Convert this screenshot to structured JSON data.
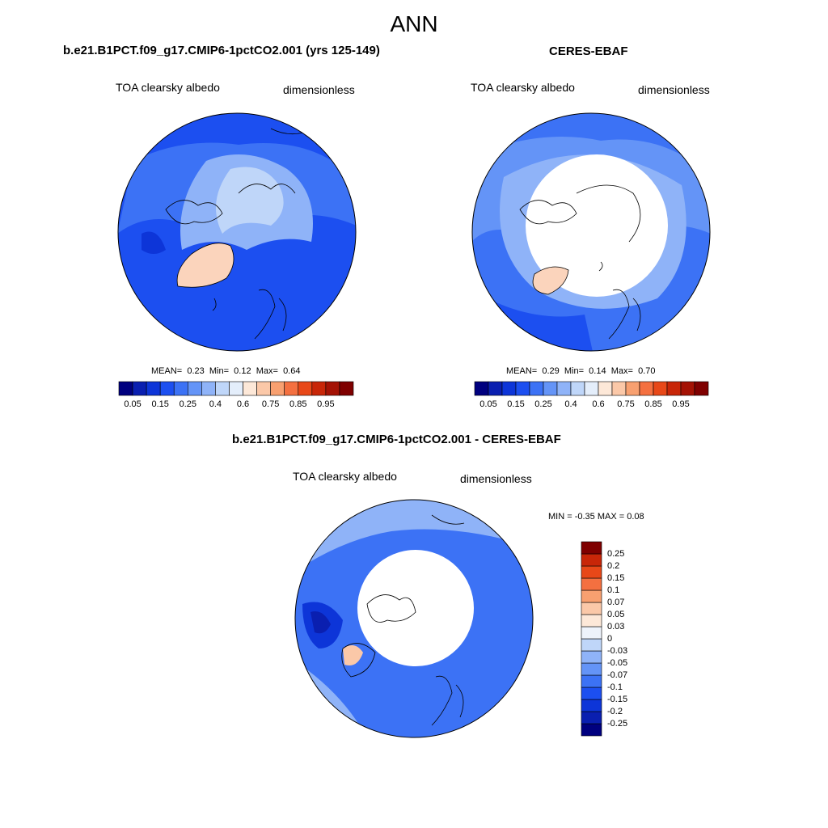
{
  "season": "ANN",
  "panels": [
    {
      "title": "b.e21.B1PCT.f09_g17.CMIP6-1pctCO2.001 (yrs 125-149)",
      "variable": "TOA clearsky albedo",
      "units": "dimensionless",
      "mean_label": "MEAN=",
      "mean": "0.23",
      "min_label": "Min=",
      "min": "0.12",
      "max_label": "Max=",
      "max": "0.64"
    },
    {
      "title": "CERES-EBAF",
      "variable": "TOA clearsky albedo",
      "units": "dimensionless",
      "mean_label": "MEAN=",
      "mean": "0.29",
      "min_label": "Min=",
      "min": "0.14",
      "max_label": "Max=",
      "max": "0.70"
    }
  ],
  "diff_panel": {
    "title": "b.e21.B1PCT.f09_g17.CMIP6-1pctCO2.001 - CERES-EBAF",
    "variable": "TOA clearsky albedo",
    "units": "dimensionless",
    "range_text": "MIN =  -0.35 MAX =   0.08"
  },
  "colorbar_abs": {
    "colors": [
      "#00007f",
      "#0a1fb0",
      "#0d35d8",
      "#1c4ff0",
      "#3c72f5",
      "#6494f7",
      "#8fb3f8",
      "#bfd6f9",
      "#e4eefb",
      "#fde8d8",
      "#fbc8a8",
      "#f8a070",
      "#f47040",
      "#e84818",
      "#c82608",
      "#a41204",
      "#7f0000"
    ],
    "tick_labels": [
      "0.05",
      "0.15",
      "0.25",
      "0.4",
      "0.6",
      "0.75",
      "0.85",
      "0.95"
    ]
  },
  "colorbar_diff": {
    "colors": [
      "#00007f",
      "#0a1fb0",
      "#0d35d8",
      "#1c4ff0",
      "#3c72f5",
      "#6494f7",
      "#8fb3f8",
      "#bfd6f9",
      "#eef3fb",
      "#fde8d8",
      "#fbc8a8",
      "#f8a070",
      "#f47040",
      "#e84818",
      "#c82608",
      "#7f0000"
    ],
    "tick_labels": [
      "0.25",
      "0.2",
      "0.15",
      "0.1",
      "0.07",
      "0.05",
      "0.03",
      "0",
      "-0.03",
      "-0.05",
      "-0.07",
      "-0.1",
      "-0.15",
      "-0.2",
      "-0.25"
    ]
  },
  "map_colors": {
    "ocean_dark": "#1c4ff0",
    "ocean_mid": "#3c72f5",
    "ice_light": "#bfd6f9",
    "greenland": "#fbd4bc",
    "missing": "#ffffff"
  }
}
